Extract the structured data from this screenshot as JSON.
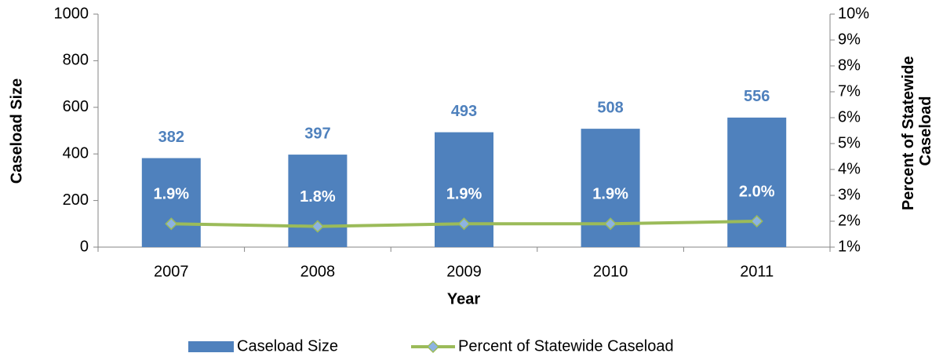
{
  "chart_data": {
    "type": "bar-line",
    "x_label": "Year",
    "y_label": "Caseload Size",
    "y2_label": "Percent of Statewide Caseload",
    "categories": [
      "2007",
      "2008",
      "2009",
      "2010",
      "2011"
    ],
    "series": [
      {
        "name": "Caseload Size",
        "type": "bar",
        "color": "#4f81bd",
        "values": [
          382,
          397,
          493,
          508,
          556
        ]
      },
      {
        "name": "Percent of Statewide Caseload",
        "type": "line",
        "axis": "y2",
        "color": "#9bbb59",
        "marker_color": "#8db3e2",
        "values": [
          1.9,
          1.8,
          1.9,
          1.9,
          2.0
        ],
        "value_labels": [
          "1.9%",
          "1.8%",
          "1.9%",
          "1.9%",
          "2.0%"
        ]
      }
    ],
    "ylim": [
      0,
      1000
    ],
    "yticks": [
      0,
      200,
      400,
      600,
      800,
      1000
    ],
    "y2lim": [
      1,
      10
    ],
    "y2ticks": [
      {
        "value": 1,
        "label": "1%"
      },
      {
        "value": 2,
        "label": "2%"
      },
      {
        "value": 3,
        "label": "3%"
      },
      {
        "value": 4,
        "label": "4%"
      },
      {
        "value": 5,
        "label": "5%"
      },
      {
        "value": 6,
        "label": "6%"
      },
      {
        "value": 7,
        "label": "7%"
      },
      {
        "value": 8,
        "label": "8%"
      },
      {
        "value": 9,
        "label": "9%"
      },
      {
        "value": 10,
        "label": "10%"
      }
    ],
    "grid": false,
    "legend": "bottom"
  }
}
